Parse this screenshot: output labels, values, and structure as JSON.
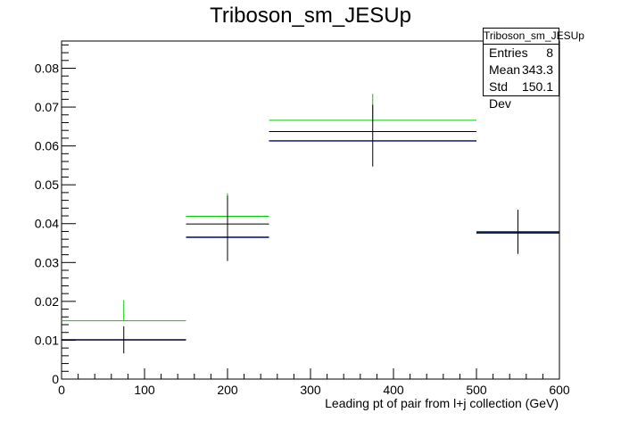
{
  "chart_data": {
    "type": "histogram",
    "title": "Triboson_sm_JESUp",
    "xlabel": "Leading pt of pair from l+j collection (GeV)",
    "ylabel": "",
    "xlim": [
      0,
      600
    ],
    "ylim": [
      0,
      0.087
    ],
    "xticks": [
      0,
      100,
      200,
      300,
      400,
      500,
      600
    ],
    "yticks": [
      0,
      0.01,
      0.02,
      0.03,
      0.04,
      0.05,
      0.06,
      0.07,
      0.08
    ],
    "xtick_labels": [
      "0",
      "100",
      "200",
      "300",
      "400",
      "500",
      "600"
    ],
    "ytick_labels": [
      "0",
      "0.01",
      "0.02",
      "0.03",
      "0.04",
      "0.05",
      "0.06",
      "0.07",
      "0.08"
    ],
    "bins": [
      [
        0,
        150
      ],
      [
        150,
        250
      ],
      [
        250,
        500
      ],
      [
        500,
        600
      ]
    ],
    "nominal": {
      "color": "#000000",
      "values": [
        0.0101,
        0.0399,
        0.0637,
        0.0379
      ],
      "err_low": [
        0.0066,
        0.0304,
        0.0547,
        0.0322
      ],
      "err_high": [
        0.0136,
        0.0472,
        0.0706,
        0.0436
      ]
    },
    "up": {
      "color": "#00cc00",
      "values": [
        0.015,
        0.0419,
        0.0666,
        0.0379
      ],
      "err_high": [
        0.0203,
        0.0478,
        0.0734,
        0.0379
      ]
    },
    "down": {
      "color": "#000080",
      "values": [
        0.0101,
        0.0365,
        0.0613,
        0.0376
      ]
    },
    "grid": false,
    "legend": "none"
  },
  "stats": {
    "title": "Triboson_sm_JESUp",
    "rows": [
      {
        "label": "Entries",
        "value": "8"
      },
      {
        "label": "Mean",
        "value": "343.3"
      },
      {
        "label": "Std Dev",
        "value": "150.1"
      }
    ]
  }
}
